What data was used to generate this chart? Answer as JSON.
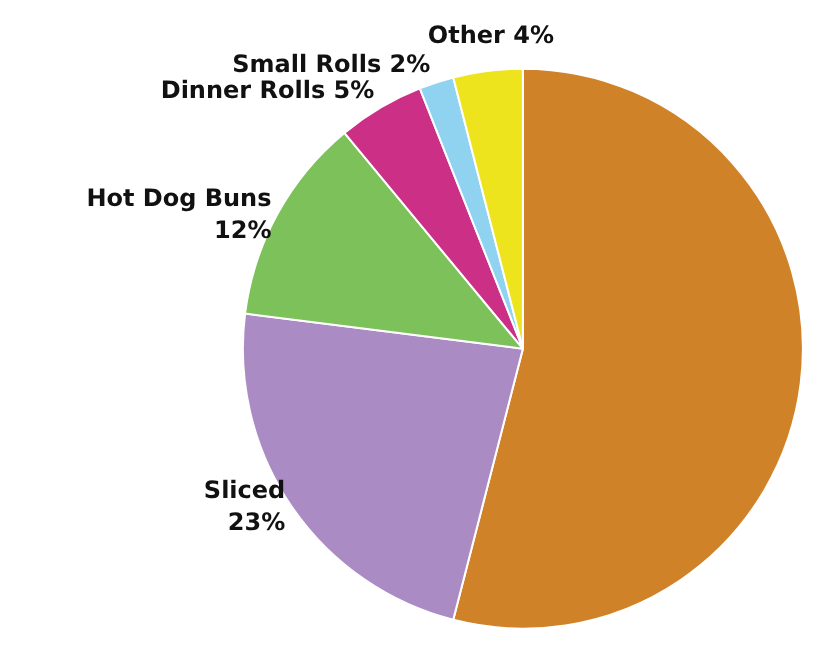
{
  "chart_data": {
    "type": "pie",
    "categories": [
      null,
      "Sliced",
      "Hot Dog Buns",
      "Dinner Rolls",
      "Small Rolls",
      "Other"
    ],
    "values": [
      54,
      23,
      12,
      5,
      2,
      4
    ],
    "colors": [
      "#d08228",
      "#ab8bc4",
      "#7dc15a",
      "#cc2f86",
      "#8fd3f0",
      "#ede41e"
    ],
    "value_labels": [
      null,
      "23%",
      "12%",
      "5%",
      "2%",
      "4%"
    ],
    "legend": false
  }
}
